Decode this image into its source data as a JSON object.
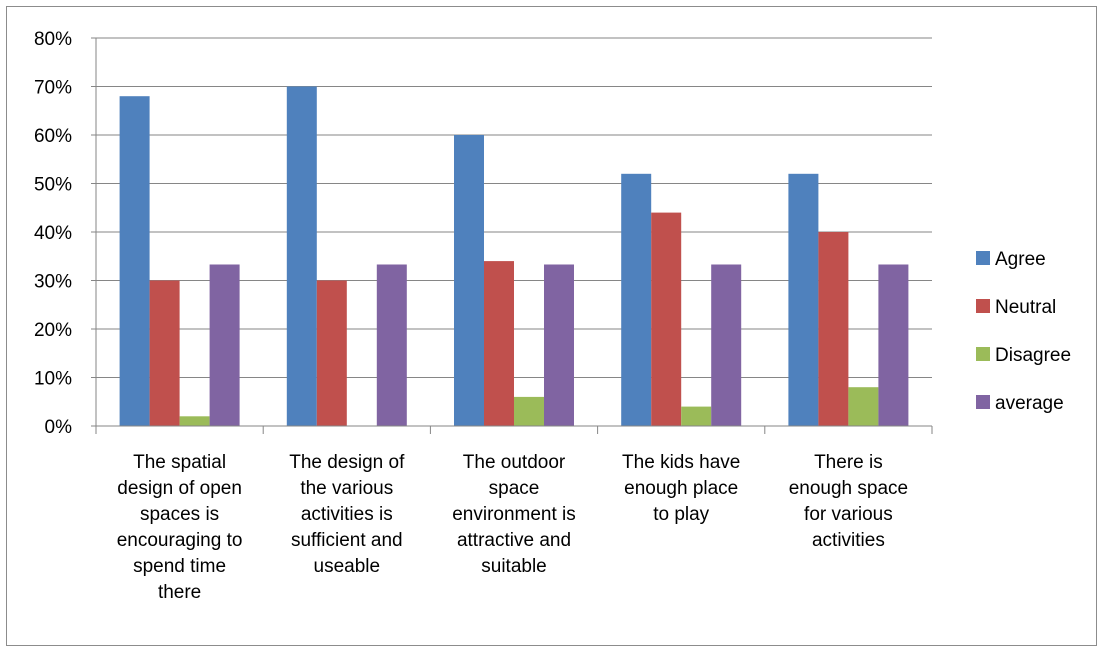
{
  "chart_data": {
    "type": "bar",
    "categories": [
      [
        "The spatial",
        "design of open",
        "spaces  is",
        "encouraging to",
        "spend time",
        "there"
      ],
      [
        "The design of",
        "the various",
        "activities is",
        "sufficient and",
        "useable"
      ],
      [
        "The outdoor",
        "space",
        "environment is",
        "attractive and",
        "suitable"
      ],
      [
        "The kids have",
        "enough place",
        "to play"
      ],
      [
        "There is",
        "enough space",
        "for various",
        "activities"
      ]
    ],
    "series": [
      {
        "name": "Agree",
        "color": "#4f81bd",
        "values": [
          68,
          70,
          60,
          52,
          52
        ]
      },
      {
        "name": "Neutral",
        "color": "#c0504d",
        "values": [
          30,
          30,
          34,
          44,
          40
        ]
      },
      {
        "name": "Disagree",
        "color": "#9bbb59",
        "values": [
          2,
          0,
          6,
          4,
          8
        ]
      },
      {
        "name": "average",
        "color": "#8064a2",
        "values": [
          33.3,
          33.3,
          33.3,
          33.3,
          33.3
        ]
      }
    ],
    "ylim": [
      0,
      80
    ],
    "yticks": [
      "0%",
      "10%",
      "20%",
      "30%",
      "40%",
      "50%",
      "60%",
      "70%",
      "80%"
    ],
    "grid": true,
    "legend_position": "right"
  }
}
